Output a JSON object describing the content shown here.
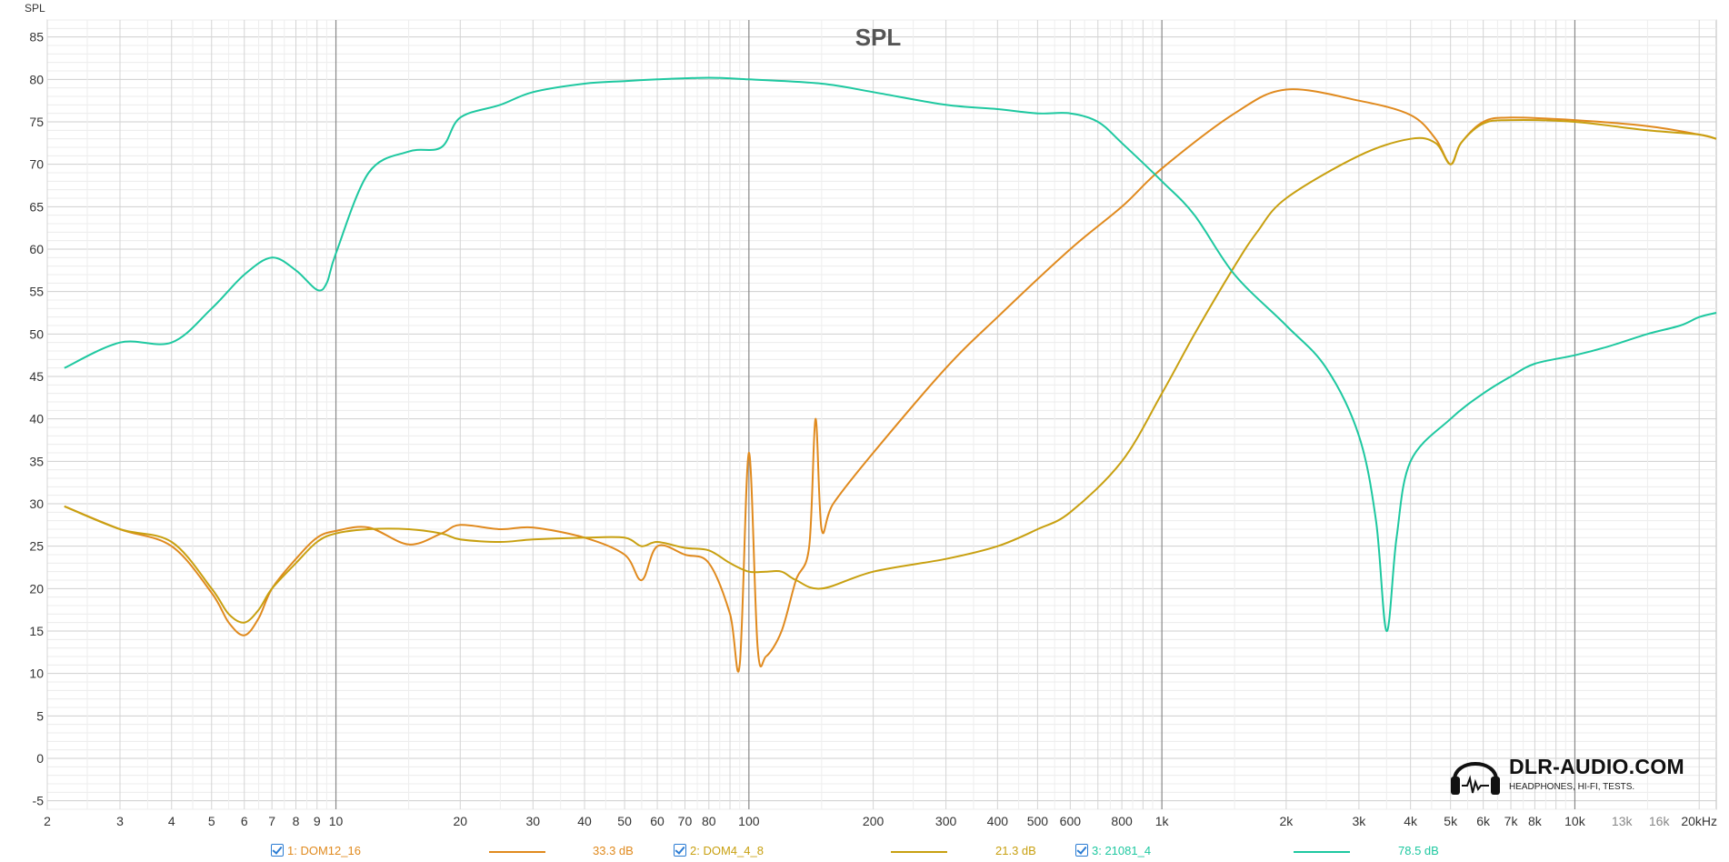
{
  "chart_data": {
    "type": "line",
    "title": "SPL",
    "ylabel": "SPL",
    "xlabel": "",
    "xscale": "log",
    "xlim": [
      2,
      22000
    ],
    "ylim": [
      -6,
      87
    ],
    "grid": true,
    "y_ticks": [
      -5,
      0,
      5,
      10,
      15,
      20,
      25,
      30,
      35,
      40,
      45,
      50,
      55,
      60,
      65,
      70,
      75,
      80,
      85
    ],
    "x_ticks": [
      {
        "v": 2,
        "label": "2"
      },
      {
        "v": 3,
        "label": "3"
      },
      {
        "v": 4,
        "label": "4"
      },
      {
        "v": 5,
        "label": "5"
      },
      {
        "v": 6,
        "label": "6"
      },
      {
        "v": 7,
        "label": "7"
      },
      {
        "v": 8,
        "label": "8"
      },
      {
        "v": 9,
        "label": "9"
      },
      {
        "v": 10,
        "label": "10"
      },
      {
        "v": 20,
        "label": "20"
      },
      {
        "v": 30,
        "label": "30"
      },
      {
        "v": 40,
        "label": "40"
      },
      {
        "v": 50,
        "label": "50"
      },
      {
        "v": 60,
        "label": "60"
      },
      {
        "v": 70,
        "label": "70"
      },
      {
        "v": 80,
        "label": "80"
      },
      {
        "v": 100,
        "label": "100"
      },
      {
        "v": 200,
        "label": "200"
      },
      {
        "v": 300,
        "label": "300"
      },
      {
        "v": 400,
        "label": "400"
      },
      {
        "v": 500,
        "label": "500"
      },
      {
        "v": 600,
        "label": "600"
      },
      {
        "v": 800,
        "label": "800"
      },
      {
        "v": 1000,
        "label": "1k"
      },
      {
        "v": 2000,
        "label": "2k"
      },
      {
        "v": 3000,
        "label": "3k"
      },
      {
        "v": 4000,
        "label": "4k"
      },
      {
        "v": 5000,
        "label": "5k"
      },
      {
        "v": 6000,
        "label": "6k"
      },
      {
        "v": 7000,
        "label": "7k"
      },
      {
        "v": 8000,
        "label": "8k"
      },
      {
        "v": 10000,
        "label": "10k"
      },
      {
        "v": 13000,
        "label": "13k"
      },
      {
        "v": 16000,
        "label": "16k"
      },
      {
        "v": 20000,
        "label": "20kHz"
      }
    ],
    "series": [
      {
        "name": "1: DOM12_16",
        "color": "#e08a1e",
        "level": "33.3 dB",
        "x": [
          2.2,
          3,
          4,
          5,
          5.5,
          6,
          6.5,
          7,
          8,
          9,
          10,
          12,
          15,
          18,
          20,
          25,
          30,
          40,
          50,
          55,
          60,
          70,
          80,
          90,
          95,
          100,
          105,
          110,
          120,
          130,
          140,
          145,
          150,
          160,
          200,
          300,
          400,
          600,
          800,
          1000,
          1500,
          2000,
          3000,
          4000,
          4600,
          5000,
          5300,
          6000,
          7000,
          10000,
          15000,
          20000,
          22000
        ],
        "y": [
          29.7,
          27,
          25,
          19.5,
          16,
          14.5,
          16.5,
          20,
          23.5,
          26,
          26.8,
          27.2,
          25.2,
          26.5,
          27.5,
          27,
          27.2,
          26,
          24,
          21,
          25,
          24,
          23,
          17,
          11,
          36,
          13,
          12,
          15,
          21,
          25,
          40,
          27,
          30,
          36,
          46,
          52,
          60,
          65,
          69.5,
          76,
          78.8,
          77.5,
          75.8,
          73,
          70,
          72.5,
          75,
          75.5,
          75.2,
          74.5,
          73.5,
          73
        ]
      },
      {
        "name": "2: DOM4_4_8",
        "color": "#c8a010",
        "level": "21.3 dB",
        "x": [
          2.2,
          3,
          4,
          5,
          5.5,
          6,
          6.5,
          7,
          8,
          9,
          10,
          12,
          15,
          18,
          20,
          25,
          30,
          40,
          50,
          55,
          60,
          70,
          80,
          90,
          100,
          110,
          120,
          130,
          150,
          200,
          300,
          400,
          500,
          600,
          800,
          1000,
          1200,
          1500,
          1700,
          2000,
          3000,
          4000,
          4600,
          5000,
          5300,
          6000,
          7000,
          10000,
          15000,
          20000,
          22000
        ],
        "y": [
          29.7,
          27,
          25.5,
          20,
          17,
          16,
          17.5,
          20,
          23,
          25.5,
          26.5,
          27,
          27,
          26.5,
          25.8,
          25.5,
          25.8,
          26,
          26,
          25,
          25.5,
          24.8,
          24.5,
          23,
          22,
          22,
          22,
          21,
          20,
          22,
          23.5,
          25,
          27,
          29,
          35,
          43,
          50,
          58,
          62,
          66,
          71,
          73,
          72.5,
          70,
          72.5,
          74.8,
          75.2,
          75,
          74,
          73.5,
          73
        ]
      },
      {
        "name": "3: 21081_4",
        "color": "#1ec8a0",
        "level": "78.5 dB",
        "x": [
          2.2,
          3,
          4,
          5,
          6,
          7,
          8,
          9,
          9.5,
          10,
          12,
          15,
          18,
          20,
          25,
          30,
          40,
          50,
          60,
          80,
          100,
          150,
          200,
          300,
          400,
          500,
          600,
          700,
          800,
          1000,
          1200,
          1500,
          2000,
          2500,
          3000,
          3300,
          3500,
          3700,
          4000,
          5000,
          6000,
          7000,
          8000,
          10000,
          12000,
          15000,
          18000,
          20000,
          22000
        ],
        "y": [
          46,
          49,
          49,
          53,
          57,
          59,
          57.5,
          55.2,
          56,
          59.5,
          69,
          71.5,
          72,
          75.5,
          77,
          78.5,
          79.5,
          79.8,
          80,
          80.2,
          80,
          79.5,
          78.5,
          77,
          76.5,
          76,
          76,
          75,
          72.5,
          68,
          64,
          57,
          51,
          46,
          38,
          28,
          15,
          26,
          35,
          40,
          43,
          45,
          46.5,
          47.5,
          48.5,
          50,
          51,
          52,
          52.5
        ]
      }
    ]
  },
  "legend": [
    {
      "label": "1: DOM12_16",
      "level": "33.3 dB"
    },
    {
      "label": "2: DOM4_4_8",
      "level": "21.3 dB"
    },
    {
      "label": "3: 21081_4",
      "level": "78.5 dB"
    }
  ],
  "logo": {
    "title": "DLR-AUDIO.COM",
    "subtitle": "HEADPHONES, HI-FI, TESTS."
  }
}
